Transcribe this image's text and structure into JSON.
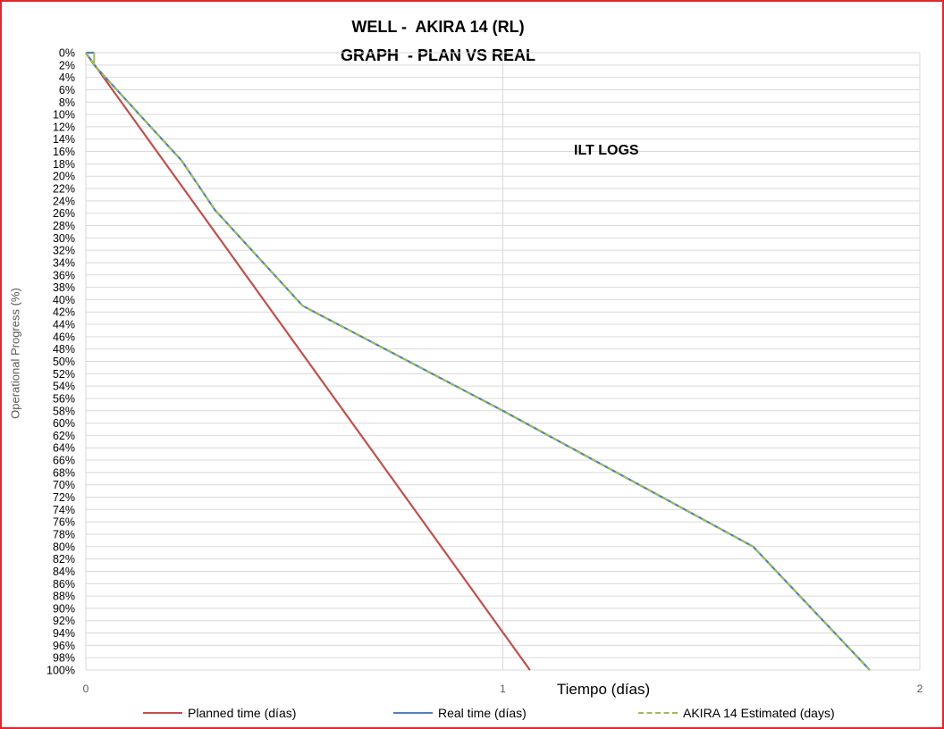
{
  "chart_data": {
    "type": "line",
    "title": [
      "WELL -  AKIRA 14 (RL)",
      "GRAPH  - PLAN VS REAL"
    ],
    "xlabel": "Tiempo (días)",
    "ylabel": "Operational Progress (%)",
    "xlim": [
      0,
      2
    ],
    "x_ticks": [
      "0",
      "1",
      "2"
    ],
    "ylim": [
      0,
      100
    ],
    "y_inverted": true,
    "y_ticks": [
      "0%",
      "2%",
      "4%",
      "6%",
      "8%",
      "10%",
      "12%",
      "14%",
      "16%",
      "18%",
      "20%",
      "22%",
      "24%",
      "26%",
      "28%",
      "30%",
      "32%",
      "34%",
      "36%",
      "38%",
      "40%",
      "42%",
      "44%",
      "46%",
      "48%",
      "50%",
      "52%",
      "54%",
      "56%",
      "58%",
      "60%",
      "62%",
      "64%",
      "66%",
      "68%",
      "70%",
      "72%",
      "74%",
      "76%",
      "78%",
      "80%",
      "82%",
      "84%",
      "86%",
      "88%",
      "90%",
      "92%",
      "94%",
      "96%",
      "98%",
      "100%"
    ],
    "grid": "horizontal + vertical at x=1",
    "legend_position": "bottom",
    "annotation": "ILT LOGS",
    "series": [
      {
        "name": "Planned time (días)",
        "color": "#c0504d",
        "dash": "solid",
        "points": [
          [
            0,
            0
          ],
          [
            1.065,
            100
          ]
        ]
      },
      {
        "name": "Real time (días)",
        "color": "#4f81bd",
        "dash": "solid",
        "points": [
          [
            0,
            0
          ],
          [
            0.02,
            0
          ]
        ]
      },
      {
        "name": "AKIRA 14 Estimated (days)",
        "color": "#9bbb59",
        "dash": "dashed",
        "points": [
          [
            0,
            0
          ],
          [
            0.02,
            2
          ],
          [
            0.23,
            17.5
          ],
          [
            0.31,
            25.5
          ],
          [
            0.52,
            41
          ],
          [
            1.0,
            58
          ],
          [
            1.6,
            80
          ],
          [
            1.88,
            100
          ]
        ]
      }
    ]
  }
}
